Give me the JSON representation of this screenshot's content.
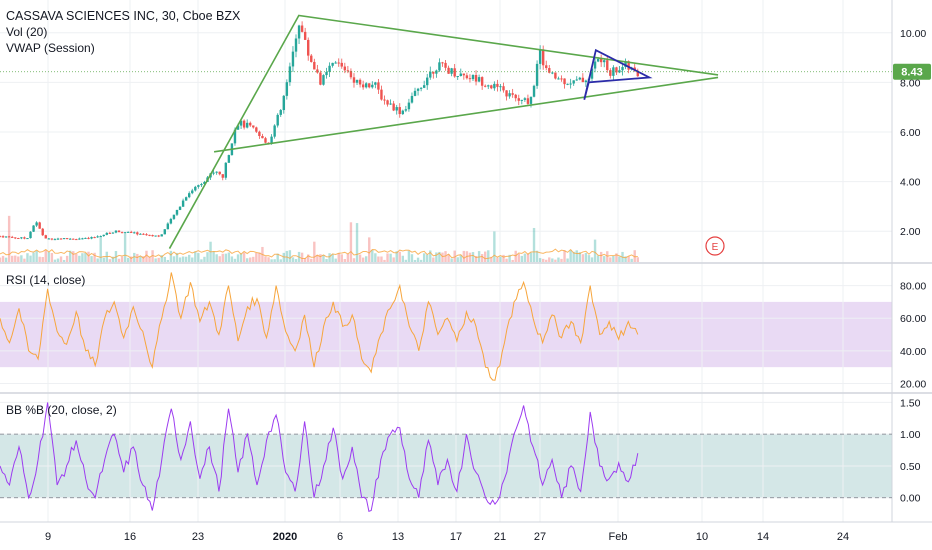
{
  "header": {
    "title": "CASSAVA SCIENCES INC, 30, Cboe BZX",
    "vol_label": "Vol (20)",
    "vwap_label": "VWAP (Session)"
  },
  "rsi_label": "RSI (14, close)",
  "bb_label": "BB %B (20, close, 2)",
  "last_price_label": "8.43",
  "earnings_marker": "E",
  "colors": {
    "up": "#26a69a",
    "down": "#ef5350",
    "trendline": "#5aa74b",
    "pennant": "#2b2ba8",
    "rsi_line": "#f7a53c",
    "rsi_band": "#e1cdf0",
    "bb_line": "#9c3cf0",
    "bb_band": "#cfe4e4",
    "price_tag": "#5aa74b"
  },
  "chart_data": [
    {
      "type": "candlestick",
      "title": "CASSAVA SCIENCES INC, 30, Cboe BZX",
      "x_tick_labels": [
        "9",
        "16",
        "23",
        "2020",
        "6",
        "13",
        "17",
        "21",
        "27",
        "Feb",
        "10",
        "14",
        "24"
      ],
      "y_tick_labels": [
        "2.00",
        "4.00",
        "6.00",
        "8.00",
        "10.00"
      ],
      "ylim": [
        1.0,
        11.0
      ],
      "last_price": 8.43,
      "trendlines": [
        {
          "name": "upper",
          "points": [
            [
              0.19,
              1.3
            ],
            [
              0.335,
              10.7
            ],
            [
              0.805,
              8.3
            ]
          ]
        },
        {
          "name": "lower",
          "points": [
            [
              0.24,
              5.2
            ],
            [
              0.805,
              8.2
            ]
          ]
        },
        {
          "name": "pennant",
          "points": [
            [
              0.655,
              7.3
            ],
            [
              0.668,
              9.3
            ],
            [
              0.728,
              8.2
            ],
            [
              0.66,
              8.0
            ]
          ]
        }
      ],
      "close_path": [
        [
          0.0,
          1.8
        ],
        [
          0.03,
          1.7
        ],
        [
          0.04,
          2.4
        ],
        [
          0.05,
          1.7
        ],
        [
          0.1,
          1.7
        ],
        [
          0.13,
          2.0
        ],
        [
          0.18,
          1.8
        ],
        [
          0.21,
          3.5
        ],
        [
          0.24,
          4.4
        ],
        [
          0.25,
          4.2
        ],
        [
          0.265,
          6.4
        ],
        [
          0.28,
          6.2
        ],
        [
          0.3,
          5.5
        ],
        [
          0.315,
          6.9
        ],
        [
          0.325,
          8.5
        ],
        [
          0.335,
          10.5
        ],
        [
          0.345,
          9.2
        ],
        [
          0.36,
          8.0
        ],
        [
          0.375,
          8.8
        ],
        [
          0.39,
          8.5
        ],
        [
          0.4,
          8.0
        ],
        [
          0.42,
          7.9
        ],
        [
          0.43,
          7.3
        ],
        [
          0.45,
          6.8
        ],
        [
          0.465,
          7.5
        ],
        [
          0.48,
          8.3
        ],
        [
          0.49,
          8.7
        ],
        [
          0.51,
          8.4
        ],
        [
          0.53,
          8.2
        ],
        [
          0.55,
          7.9
        ],
        [
          0.57,
          7.5
        ],
        [
          0.585,
          7.2
        ],
        [
          0.595,
          7.3
        ],
        [
          0.605,
          9.2
        ],
        [
          0.615,
          8.3
        ],
        [
          0.63,
          8.1
        ],
        [
          0.645,
          8.0
        ],
        [
          0.66,
          8.2
        ],
        [
          0.67,
          9.0
        ],
        [
          0.685,
          8.4
        ],
        [
          0.7,
          8.7
        ],
        [
          0.715,
          8.3
        ]
      ]
    },
    {
      "type": "line",
      "title": "RSI (14, close)",
      "y_tick_labels": [
        "20.00",
        "40.00",
        "60.00",
        "80.00"
      ],
      "ylim": [
        16,
        92
      ],
      "band": [
        30,
        70
      ],
      "values": [
        60,
        45,
        66,
        40,
        35,
        78,
        52,
        44,
        64,
        40,
        31,
        60,
        70,
        48,
        67,
        52,
        30,
        60,
        88,
        60,
        82,
        58,
        70,
        50,
        80,
        46,
        67,
        72,
        48,
        80,
        52,
        40,
        62,
        30,
        55,
        70,
        55,
        62,
        35,
        27,
        50,
        66,
        80,
        55,
        40,
        70,
        50,
        60,
        46,
        64,
        55,
        30,
        22,
        45,
        70,
        82,
        60,
        45,
        62,
        48,
        58,
        45,
        80,
        50,
        58,
        47,
        58,
        50
      ]
    },
    {
      "type": "line",
      "title": "BB %B (20, close, 2)",
      "y_tick_labels": [
        "0.00",
        "0.50",
        "1.00",
        "1.50"
      ],
      "ylim": [
        -0.35,
        1.6
      ],
      "band": [
        0,
        1
      ],
      "values": [
        0.5,
        0.2,
        0.8,
        0.0,
        0.6,
        1.5,
        0.2,
        0.5,
        0.9,
        0.3,
        0.0,
        0.6,
        1.0,
        0.4,
        0.8,
        0.2,
        -0.2,
        0.6,
        1.4,
        0.6,
        1.2,
        0.3,
        0.8,
        0.1,
        1.4,
        0.4,
        1.0,
        0.2,
        0.9,
        1.3,
        0.4,
        0.1,
        1.2,
        0.0,
        0.5,
        1.1,
        0.3,
        0.8,
        0.0,
        -0.2,
        0.6,
        1.0,
        1.1,
        0.3,
        0.0,
        0.9,
        0.2,
        0.6,
        0.1,
        1.0,
        0.4,
        0.0,
        -0.1,
        0.3,
        1.0,
        1.45,
        0.8,
        0.2,
        0.6,
        0.0,
        0.5,
        0.1,
        1.35,
        0.5,
        0.3,
        0.55,
        0.25,
        0.7
      ]
    }
  ]
}
